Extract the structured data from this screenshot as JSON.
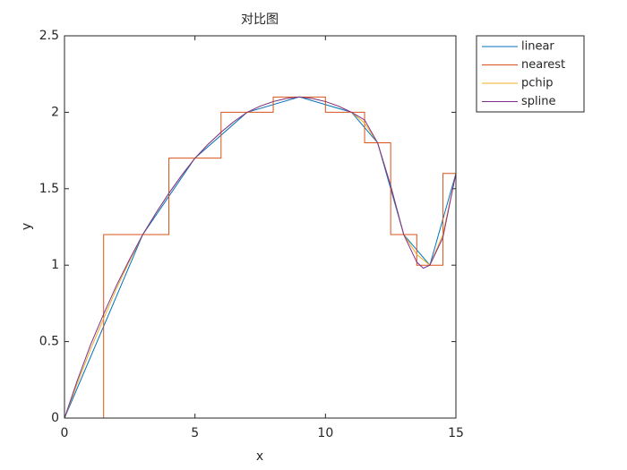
{
  "chart_data": {
    "type": "line",
    "title": "对比图",
    "xlabel": "x",
    "ylabel": "y",
    "xlim": [
      0,
      15
    ],
    "ylim": [
      0,
      2.5
    ],
    "xticks": [
      0,
      5,
      10,
      15
    ],
    "yticks": [
      0,
      0.5,
      1,
      1.5,
      2,
      2.5
    ],
    "legend": "outside-top-right",
    "box": true,
    "series": [
      {
        "name": "linear",
        "color": "#0072bd",
        "interpolation": "linear",
        "x": [
          0,
          3,
          5,
          7,
          9,
          11,
          12,
          13,
          14,
          15
        ],
        "values": [
          0,
          1.2,
          1.7,
          2.0,
          2.1,
          2.0,
          1.8,
          1.2,
          1.0,
          1.6
        ]
      },
      {
        "name": "nearest",
        "color": "#d95319",
        "interpolation": "nearest",
        "x": [
          0,
          3,
          5,
          7,
          9,
          11,
          12,
          13,
          14,
          15
        ],
        "values": [
          0,
          1.2,
          1.7,
          2.0,
          2.1,
          2.0,
          1.8,
          1.2,
          1.0,
          1.6
        ]
      },
      {
        "name": "pchip",
        "color": "#edb120",
        "interpolation": "linear",
        "x": [
          0,
          0.5,
          1,
          1.5,
          2,
          2.5,
          3,
          3.5,
          4,
          4.5,
          5,
          5.5,
          6,
          6.5,
          7,
          7.5,
          8,
          8.5,
          9,
          9.5,
          10,
          10.5,
          11,
          11.5,
          12,
          12.5,
          13,
          13.5,
          14,
          14.5,
          15
        ],
        "values": [
          0,
          0.23,
          0.45,
          0.65,
          0.85,
          1.03,
          1.2,
          1.34,
          1.47,
          1.59,
          1.7,
          1.79,
          1.87,
          1.94,
          2.0,
          2.04,
          2.07,
          2.09,
          2.1,
          2.09,
          2.07,
          2.04,
          2.0,
          1.93,
          1.8,
          1.52,
          1.2,
          1.07,
          1.0,
          1.2,
          1.6
        ]
      },
      {
        "name": "spline",
        "color": "#7e2f8e",
        "interpolation": "linear",
        "x": [
          0,
          0.5,
          1,
          1.5,
          2,
          2.5,
          3,
          3.5,
          4,
          4.5,
          5,
          5.5,
          6,
          6.5,
          7,
          7.5,
          8,
          8.5,
          9,
          9.5,
          10,
          10.5,
          11,
          11.5,
          12,
          12.5,
          13,
          13.5,
          13.75,
          14,
          14.5,
          15
        ],
        "values": [
          0,
          0.25,
          0.48,
          0.68,
          0.87,
          1.04,
          1.2,
          1.34,
          1.47,
          1.59,
          1.7,
          1.79,
          1.87,
          1.94,
          2.0,
          2.04,
          2.07,
          2.09,
          2.1,
          2.09,
          2.07,
          2.04,
          2.0,
          1.95,
          1.8,
          1.52,
          1.2,
          1.02,
          0.98,
          1.0,
          1.18,
          1.6
        ]
      }
    ]
  }
}
